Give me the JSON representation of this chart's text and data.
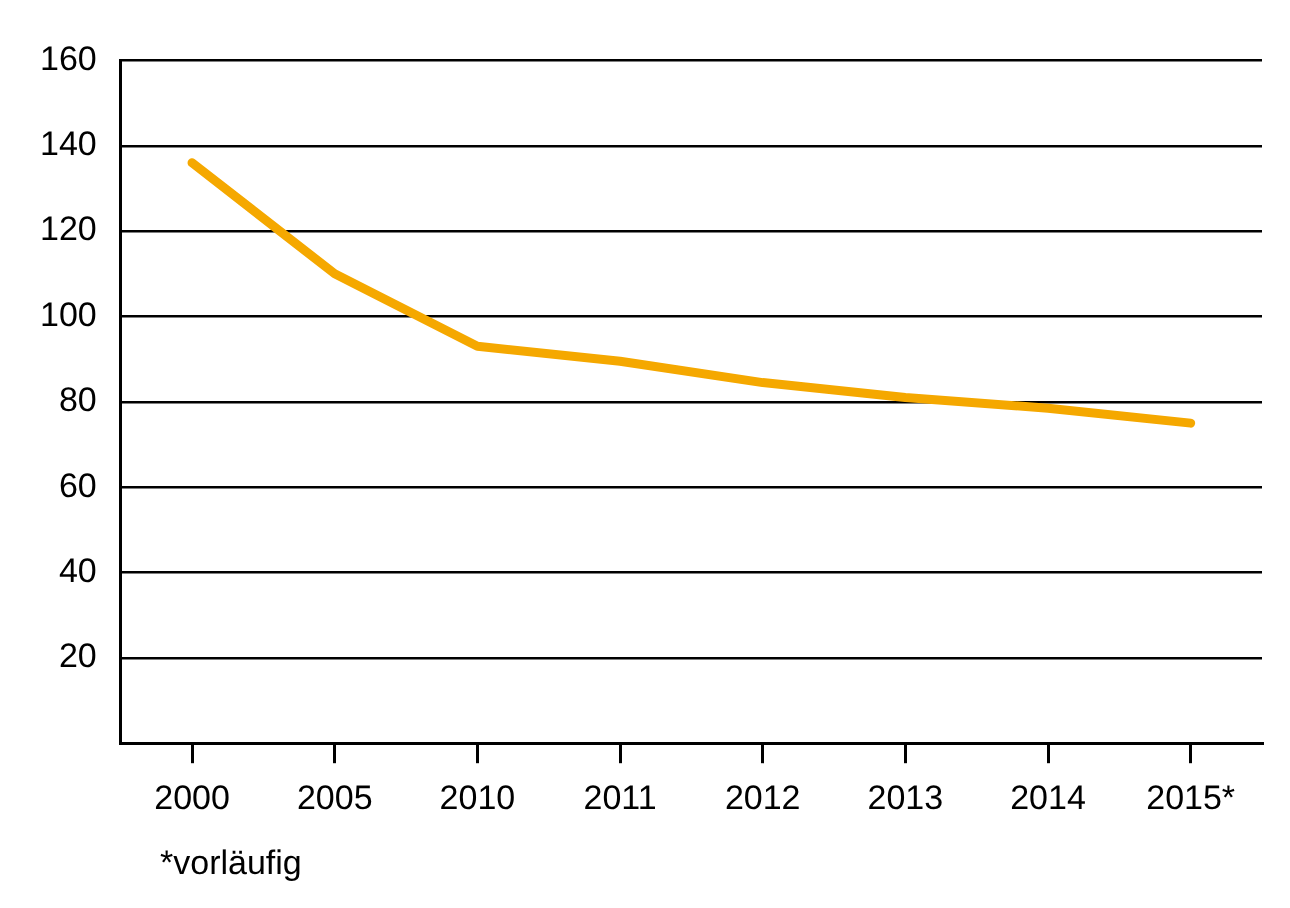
{
  "chart_data": {
    "type": "line",
    "categories": [
      "2000",
      "2005",
      "2010",
      "2011",
      "2012",
      "2013",
      "2014",
      "2015*"
    ],
    "series": [
      {
        "color": "#f5a800",
        "values": [
          136,
          110,
          93,
          89.5,
          84.5,
          81,
          78.5,
          75
        ]
      }
    ],
    "ylim": [
      0,
      160
    ],
    "yticks": [
      20,
      40,
      60,
      80,
      100,
      120,
      140,
      160
    ],
    "grid": "y",
    "legend": false,
    "marker": "none",
    "line_style": "solid",
    "annotations": [
      "*vorläufig"
    ]
  }
}
